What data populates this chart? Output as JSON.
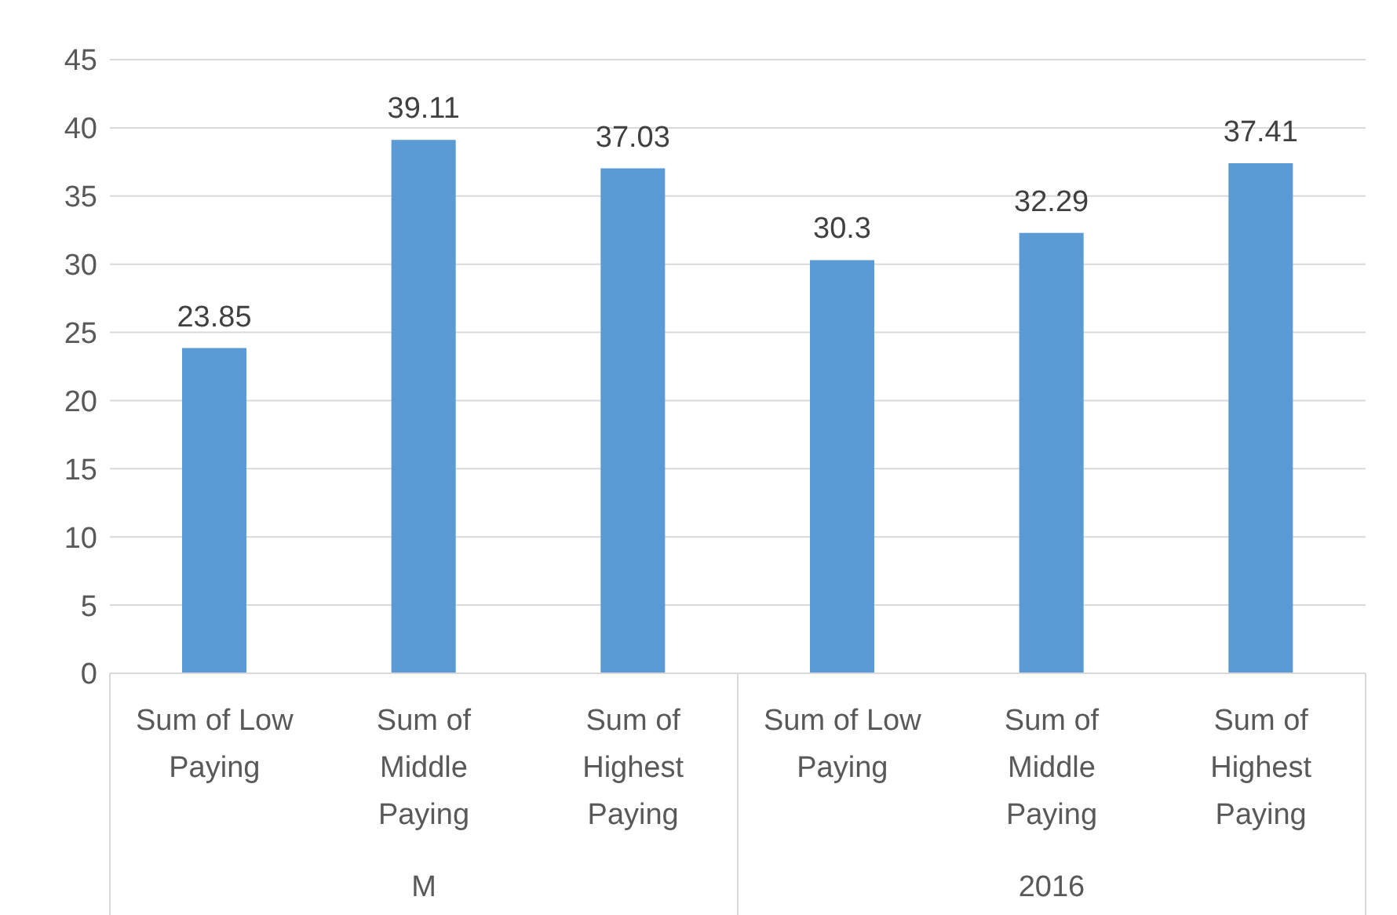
{
  "chart_data": {
    "type": "bar",
    "categories": [
      "Sum of Low Paying",
      "Sum of Middle Paying",
      "Sum of Highest Paying",
      "Sum of Low Paying",
      "Sum of Middle Paying",
      "Sum of Highest Paying"
    ],
    "values": [
      23.85,
      39.11,
      37.03,
      30.3,
      32.29,
      37.41
    ],
    "color": "#5b9bd5",
    "ylim": [
      0,
      45
    ],
    "yticks": [
      0,
      5,
      10,
      15,
      20,
      25,
      30,
      35,
      40,
      45
    ],
    "grid": "y",
    "data_labels": true,
    "annotations": [
      "M",
      "2016"
    ]
  }
}
